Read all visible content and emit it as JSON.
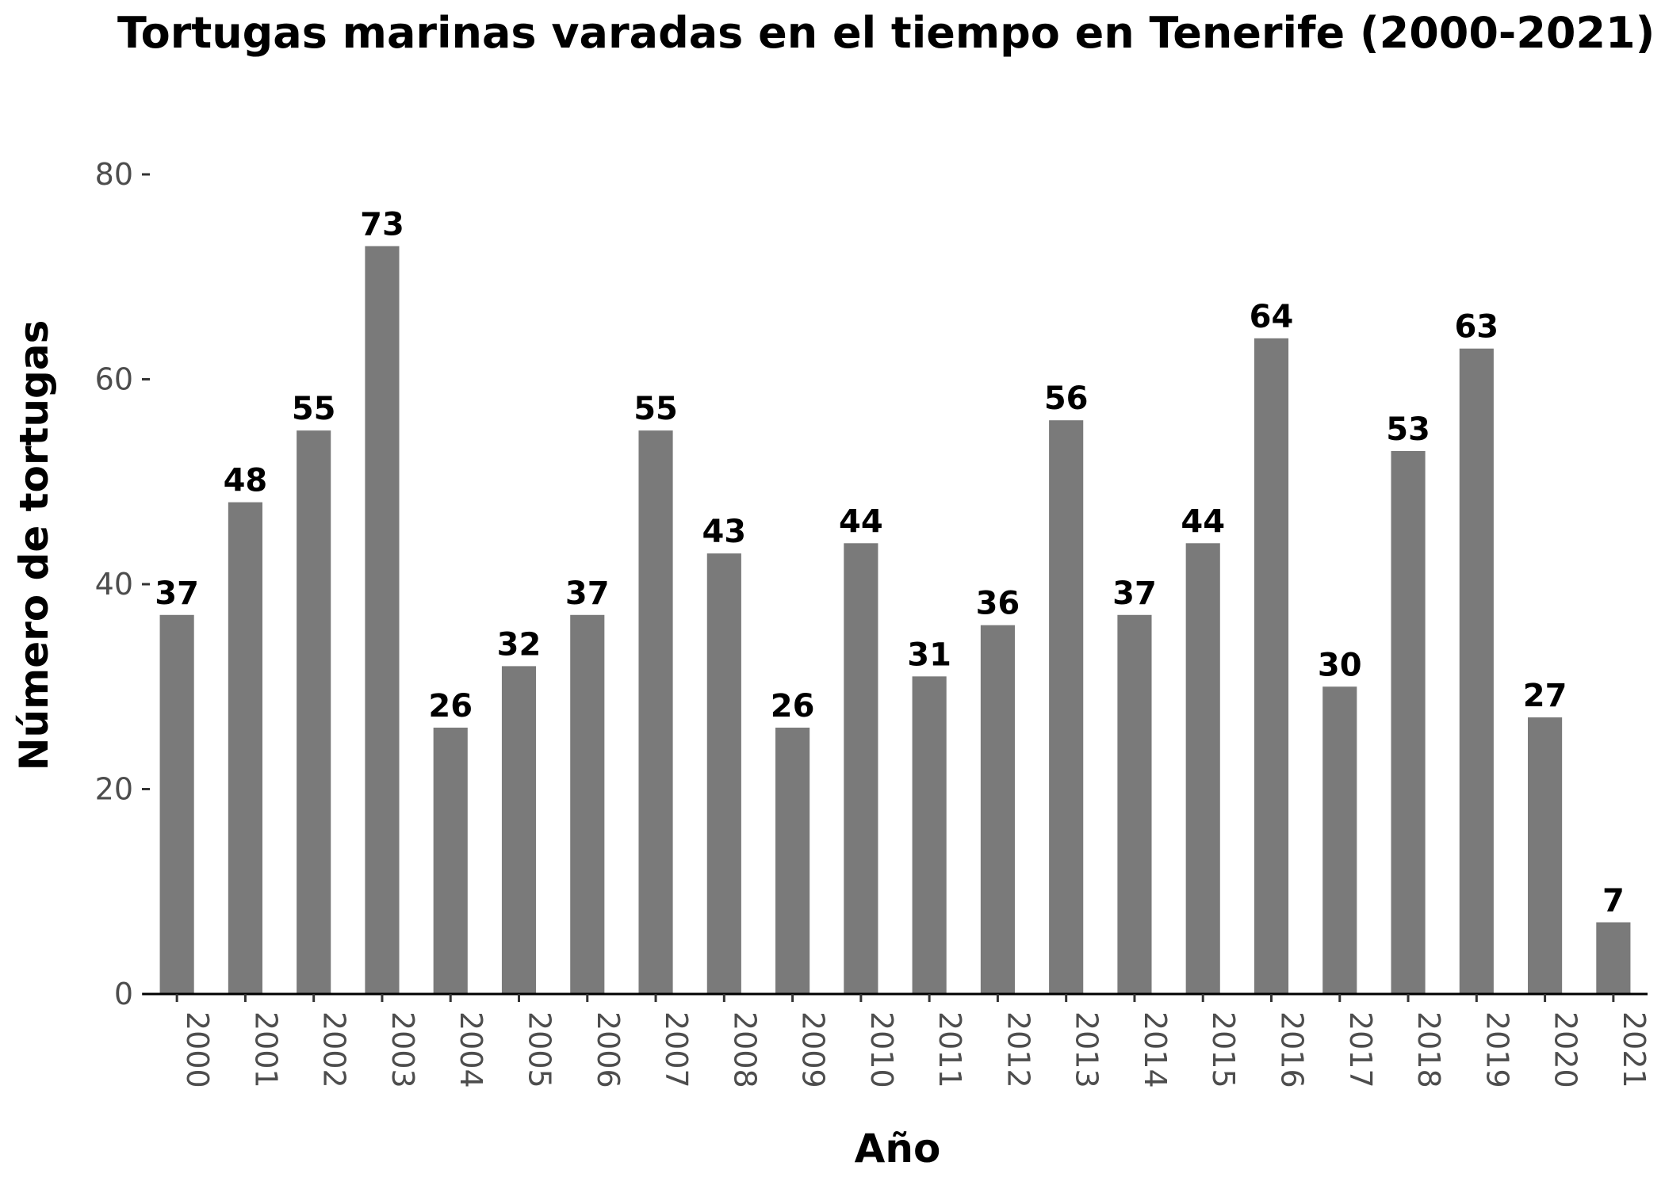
{
  "chart_data": {
    "type": "bar",
    "title": "Tortugas marinas varadas en el tiempo en Tenerife (2000-2021)",
    "xlabel": "Año",
    "ylabel": "Número de tortugas",
    "categories": [
      "2000",
      "2001",
      "2002",
      "2003",
      "2004",
      "2005",
      "2006",
      "2007",
      "2008",
      "2009",
      "2010",
      "2011",
      "2012",
      "2013",
      "2014",
      "2015",
      "2016",
      "2017",
      "2018",
      "2019",
      "2020",
      "2021"
    ],
    "values": [
      37,
      48,
      55,
      73,
      26,
      32,
      37,
      55,
      43,
      26,
      44,
      31,
      36,
      56,
      37,
      44,
      64,
      30,
      53,
      63,
      27,
      7
    ],
    "ylim": [
      0,
      80
    ],
    "yticks": [
      0,
      20,
      40,
      60,
      80
    ],
    "grid": false,
    "bar_color": "#7a7a7a",
    "data_labels": true
  }
}
